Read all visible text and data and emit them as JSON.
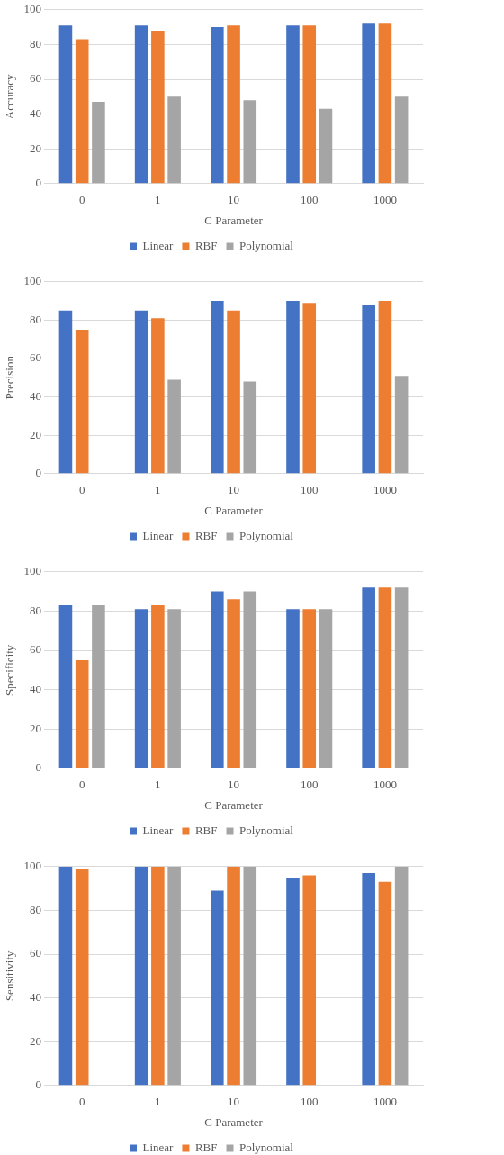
{
  "chart_data": [
    {
      "type": "bar",
      "xlabel": "C Parameter",
      "ylabel": "Accuracy",
      "categories": [
        "0",
        "1",
        "10",
        "100",
        "1000"
      ],
      "ylim": [
        0,
        100
      ],
      "yticks": [
        0,
        20,
        40,
        60,
        80,
        100
      ],
      "grid": "y",
      "legend": "bottom",
      "series": [
        {
          "name": "Linear",
          "color": "#4472c4",
          "values": [
            91,
            91,
            90,
            91,
            92
          ]
        },
        {
          "name": "RBF",
          "color": "#ed7d31",
          "values": [
            83,
            88,
            91,
            91,
            92
          ]
        },
        {
          "name": "Polynomial",
          "color": "#a5a5a5",
          "values": [
            47,
            50,
            48,
            43,
            50
          ]
        }
      ]
    },
    {
      "type": "bar",
      "xlabel": "C Parameter",
      "ylabel": "Precision",
      "categories": [
        "0",
        "1",
        "10",
        "100",
        "1000"
      ],
      "ylim": [
        0,
        100
      ],
      "yticks": [
        0,
        20,
        40,
        60,
        80,
        100
      ],
      "grid": "y",
      "legend": "bottom",
      "series": [
        {
          "name": "Linear",
          "color": "#4472c4",
          "values": [
            85,
            85,
            90,
            90,
            88
          ]
        },
        {
          "name": "RBF",
          "color": "#ed7d31",
          "values": [
            75,
            81,
            85,
            89,
            90
          ]
        },
        {
          "name": "Polynomial",
          "color": "#a5a5a5",
          "values": [
            null,
            49,
            48,
            null,
            51
          ]
        }
      ]
    },
    {
      "type": "bar",
      "xlabel": "C Parameter",
      "ylabel": "Specificity",
      "categories": [
        "0",
        "1",
        "10",
        "100",
        "1000"
      ],
      "ylim": [
        0,
        100
      ],
      "yticks": [
        0,
        20,
        40,
        60,
        80,
        100
      ],
      "grid": "y",
      "legend": "bottom",
      "series": [
        {
          "name": "Linear",
          "color": "#4472c4",
          "values": [
            83,
            81,
            90,
            81,
            92
          ]
        },
        {
          "name": "RBF",
          "color": "#ed7d31",
          "values": [
            55,
            83,
            86,
            81,
            92
          ]
        },
        {
          "name": "Polynomial",
          "color": "#a5a5a5",
          "values": [
            83,
            81,
            90,
            81,
            92
          ]
        }
      ]
    },
    {
      "type": "bar",
      "xlabel": "C Parameter",
      "ylabel": "Sensitivity",
      "categories": [
        "0",
        "1",
        "10",
        "100",
        "1000"
      ],
      "ylim": [
        0,
        100
      ],
      "yticks": [
        0,
        20,
        40,
        60,
        80,
        100
      ],
      "grid": "y",
      "legend": "bottom",
      "series": [
        {
          "name": "Linear",
          "color": "#4472c4",
          "values": [
            100,
            100,
            89,
            95,
            97
          ]
        },
        {
          "name": "RBF",
          "color": "#ed7d31",
          "values": [
            99,
            100,
            100,
            96,
            93
          ]
        },
        {
          "name": "Polynomial",
          "color": "#a5a5a5",
          "values": [
            null,
            100,
            100,
            null,
            100
          ]
        }
      ]
    }
  ]
}
